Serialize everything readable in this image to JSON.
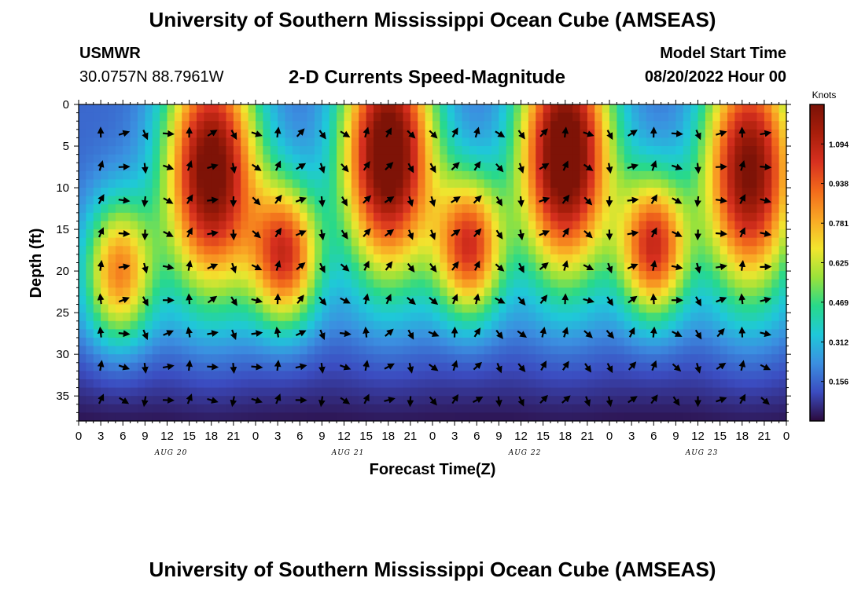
{
  "page": {
    "title": "University of Southern Mississippi Ocean Cube (AMSEAS)",
    "station": "USMWR",
    "coordinates": "30.0757N  88.7961W",
    "plot_title": "2-D Currents Speed-Magnitude",
    "model_start_label": "Model Start Time",
    "model_start_value": "08/20/2022 Hour 00",
    "footer_title": "University of Southern Mississippi Ocean Cube (AMSEAS)"
  },
  "chart_data": {
    "type": "heatmap",
    "title": "2-D Currents Speed-Magnitude",
    "xlabel": "Forecast Time(Z)",
    "ylabel": "Depth (ft)",
    "x_range_hours": [
      0,
      96
    ],
    "y_range_ft": [
      0,
      38
    ],
    "y_inverted": true,
    "x_ticks": [
      "0",
      "3",
      "6",
      "9",
      "12",
      "15",
      "18",
      "21",
      "0",
      "3",
      "6",
      "9",
      "12",
      "15",
      "18",
      "21",
      "0",
      "3",
      "6",
      "9",
      "12",
      "15",
      "18",
      "21",
      "0",
      "3",
      "6",
      "9",
      "12",
      "15",
      "18",
      "21",
      "0"
    ],
    "date_labels": [
      {
        "label": "AUG 20",
        "hour": 12
      },
      {
        "label": "AUG 21",
        "hour": 36
      },
      {
        "label": "AUG 22",
        "hour": 60
      },
      {
        "label": "AUG 23",
        "hour": 84
      }
    ],
    "y_ticks": [
      0,
      5,
      10,
      15,
      20,
      25,
      30,
      35
    ],
    "colorbar": {
      "label": "Knots",
      "min": 0,
      "max": 1.25,
      "ticks": [
        "0.156",
        "0.312",
        "0.469",
        "0.625",
        "0.781",
        "0.938",
        "1.094"
      ],
      "colors": [
        "#2b0a3d",
        "#3b4cc0",
        "#3b8fe0",
        "#1fc8d9",
        "#28d98a",
        "#9be23a",
        "#f2e52e",
        "#f9a825",
        "#f26a1b",
        "#d7301f",
        "#a81e0b",
        "#7a1207"
      ]
    },
    "speed_peaks_knots": [
      {
        "center_hour": 5.5,
        "center_depth_ft": 20,
        "speed": 0.7
      },
      {
        "center_hour": 18,
        "center_depth_ft": 8,
        "speed": 1.15
      },
      {
        "center_hour": 28,
        "center_depth_ft": 18,
        "speed": 0.85
      },
      {
        "center_hour": 42,
        "center_depth_ft": 6,
        "speed": 1.2
      },
      {
        "center_hour": 53,
        "center_depth_ft": 17,
        "speed": 0.85
      },
      {
        "center_hour": 66,
        "center_depth_ft": 6,
        "speed": 1.22
      },
      {
        "center_hour": 78,
        "center_depth_ft": 17,
        "speed": 0.88
      },
      {
        "center_hour": 91,
        "center_depth_ft": 8,
        "speed": 1.1
      }
    ],
    "vector_hours": [
      0,
      3,
      6,
      9,
      12,
      15,
      18,
      21,
      24,
      27,
      30,
      33,
      36,
      39,
      42,
      45,
      48,
      51,
      54,
      57,
      60,
      63,
      66,
      69,
      72,
      75,
      78,
      81,
      84,
      87,
      90,
      93,
      96
    ],
    "vector_depths_ft": [
      3.5,
      7.5,
      11.5,
      15.5,
      19.5,
      23.5,
      27.5,
      31.5,
      35.5
    ]
  }
}
